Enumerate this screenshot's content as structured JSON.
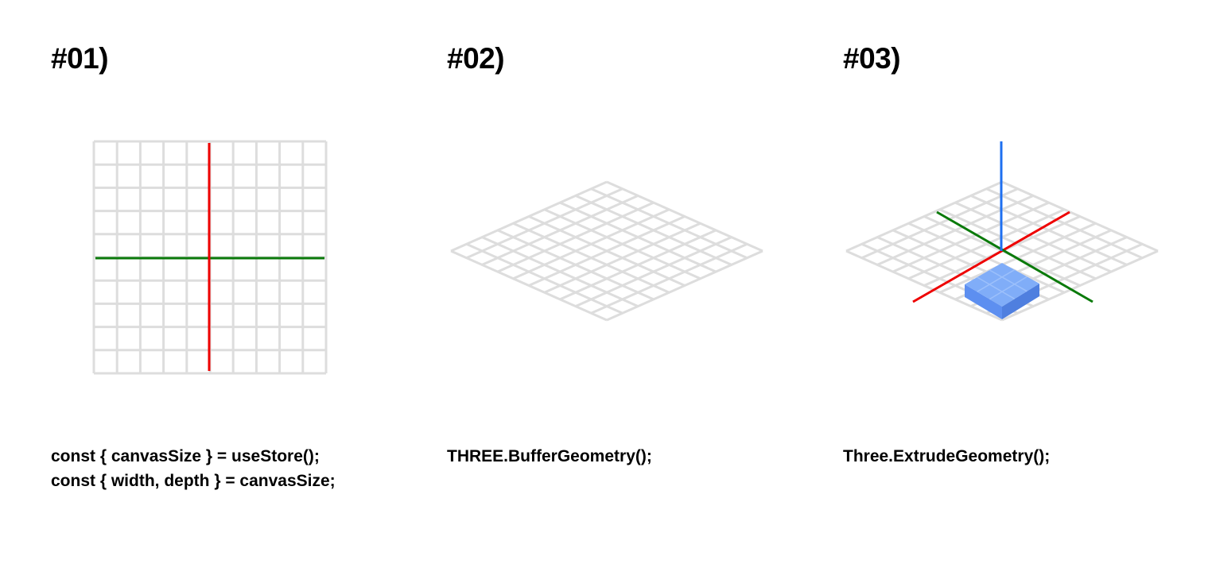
{
  "panels": [
    {
      "title": "#01)",
      "code": [
        "const { canvasSize } = useStore();",
        "const { width, depth } = canvasSize;"
      ]
    },
    {
      "title": "#02)",
      "code": [
        "THREE.BufferGeometry();"
      ]
    },
    {
      "title": "#03)",
      "code": [
        "Three.ExtrudeGeometry();"
      ]
    }
  ],
  "colors": {
    "grid": "#dddddd",
    "axis_x": "#ee0000",
    "axis_z": "#0a7a0a",
    "axis_y": "#1e6ff0",
    "box_top": "#80adf8",
    "box_left": "#5d8ff0",
    "box_right": "#4f7fdf",
    "box_top_lines": "#9cc0fb"
  }
}
